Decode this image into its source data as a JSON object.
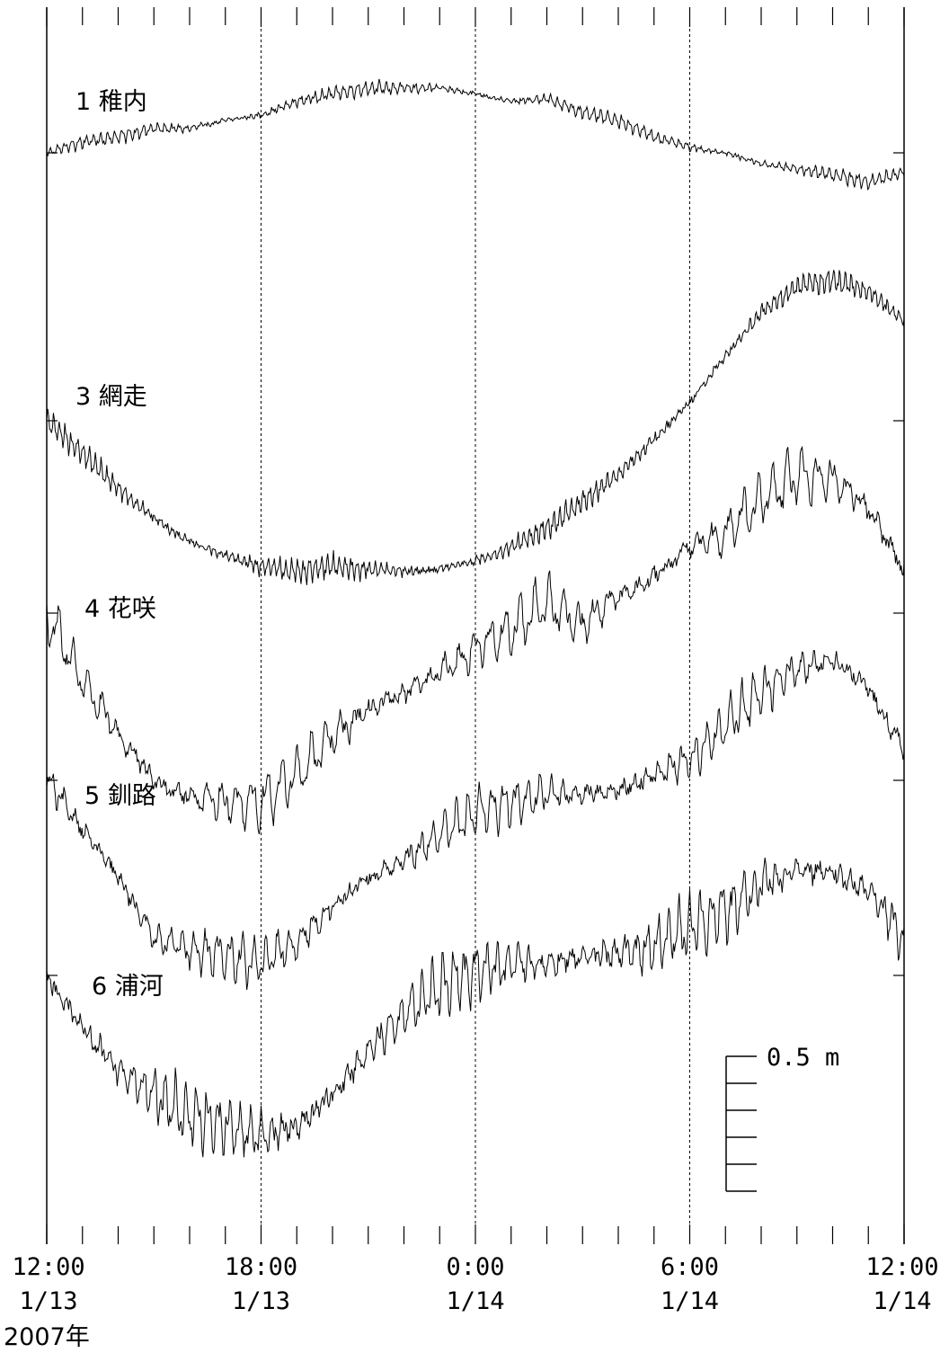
{
  "chart_data": {
    "type": "line",
    "title": "",
    "xlabel": "",
    "ylabel": "",
    "year_label": "2007年",
    "x_range": [
      "2007-01-13T12:00",
      "2007-01-14T12:00"
    ],
    "x_ticks": [
      {
        "time": "12:00",
        "date": "1/13"
      },
      {
        "time": "18:00",
        "date": "1/13"
      },
      {
        "time": "0:00",
        "date": "1/14"
      },
      {
        "time": "6:00",
        "date": "1/14"
      },
      {
        "time": "12:00",
        "date": "1/14"
      }
    ],
    "minor_tick_interval_hours": 1,
    "gridlines": [
      "18:00",
      "0:00",
      "6:00"
    ],
    "scale_bar": {
      "label": "0.5 m",
      "value_m": 0.5,
      "subdivisions": 5
    },
    "series": [
      {
        "name": "1 稚内",
        "x_hours": [
          0,
          1,
          2,
          3,
          4,
          5,
          6,
          7,
          8,
          9,
          10,
          11,
          12,
          13,
          14,
          15,
          16,
          17,
          18,
          19,
          20,
          21,
          22,
          23,
          24
        ],
        "y_m": [
          0,
          0.04,
          0.06,
          0.09,
          0.09,
          0.12,
          0.14,
          0.19,
          0.22,
          0.24,
          0.24,
          0.24,
          0.22,
          0.19,
          0.2,
          0.15,
          0.12,
          0.06,
          0.02,
          0.0,
          -0.04,
          -0.06,
          -0.08,
          -0.11,
          -0.07
        ],
        "noise_m": 0.02,
        "period_min": 12
      },
      {
        "name": "3 網走",
        "x_hours": [
          0,
          1,
          2,
          3,
          4,
          5,
          6,
          7,
          8,
          9,
          10,
          11,
          12,
          13,
          14,
          15,
          16,
          17,
          18,
          19,
          20,
          21,
          22,
          23,
          24
        ],
        "y_m": [
          0,
          -0.12,
          -0.25,
          -0.36,
          -0.45,
          -0.5,
          -0.54,
          -0.56,
          -0.54,
          -0.55,
          -0.56,
          -0.55,
          -0.52,
          -0.47,
          -0.4,
          -0.3,
          -0.2,
          -0.07,
          0.07,
          0.24,
          0.4,
          0.5,
          0.52,
          0.48,
          0.37
        ],
        "noise_m": 0.035,
        "period_min": 10
      },
      {
        "name": "4 花咲",
        "x_hours": [
          0,
          1,
          2,
          3,
          4,
          5,
          6,
          7,
          8,
          9,
          10,
          11,
          12,
          13,
          14,
          15,
          16,
          17,
          18,
          19,
          20,
          21,
          22,
          23,
          24
        ],
        "y_m": [
          0,
          -0.25,
          -0.45,
          -0.62,
          -0.68,
          -0.7,
          -0.7,
          -0.6,
          -0.46,
          -0.36,
          -0.3,
          -0.22,
          -0.13,
          -0.06,
          0.04,
          -0.04,
          0.06,
          0.13,
          0.25,
          0.3,
          0.42,
          0.51,
          0.5,
          0.39,
          0.16
        ],
        "noise_m": 0.08,
        "period_min": 25
      },
      {
        "name": "5 釧路",
        "x_hours": [
          0,
          1,
          2,
          3,
          4,
          5,
          6,
          7,
          8,
          9,
          10,
          11,
          12,
          13,
          14,
          15,
          16,
          17,
          18,
          19,
          20,
          21,
          22,
          23,
          24
        ],
        "y_m": [
          0,
          -0.18,
          -0.36,
          -0.58,
          -0.63,
          -0.65,
          -0.68,
          -0.6,
          -0.47,
          -0.36,
          -0.3,
          -0.2,
          -0.12,
          -0.08,
          -0.05,
          -0.05,
          -0.04,
          0.02,
          0.08,
          0.2,
          0.33,
          0.41,
          0.45,
          0.34,
          0.11
        ],
        "noise_m": 0.07,
        "period_min": 20
      },
      {
        "name": "6 浦河",
        "x_hours": [
          0,
          1,
          2,
          3,
          4,
          5,
          6,
          7,
          8,
          9,
          10,
          11,
          12,
          13,
          14,
          15,
          16,
          17,
          18,
          19,
          20,
          21,
          22,
          23,
          24
        ],
        "y_m": [
          0,
          -0.2,
          -0.35,
          -0.45,
          -0.52,
          -0.56,
          -0.59,
          -0.56,
          -0.44,
          -0.28,
          -0.14,
          -0.04,
          0.02,
          0.04,
          0.04,
          0.07,
          0.08,
          0.11,
          0.18,
          0.24,
          0.34,
          0.39,
          0.38,
          0.31,
          0.15
        ],
        "noise_m": 0.09,
        "period_min": 18
      }
    ]
  }
}
